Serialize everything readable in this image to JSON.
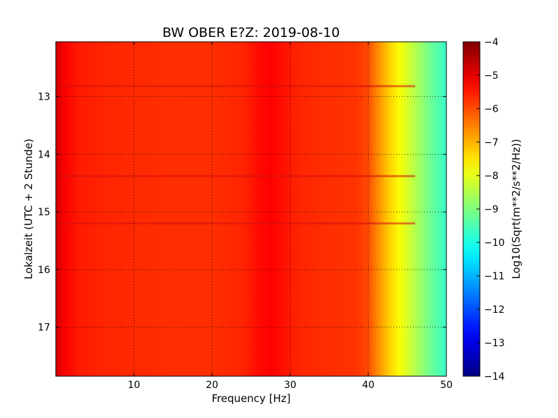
{
  "chart_data": {
    "type": "heatmap",
    "title": "BW OBER E?Z: 2019-08-10",
    "xlabel": "Frequency [Hz]",
    "ylabel": "Lokalzeit (UTC + 2 Stunde)",
    "xlim": [
      0,
      50
    ],
    "ylim": [
      17.85,
      12.05
    ],
    "x_ticks": [
      10,
      20,
      30,
      40,
      50
    ],
    "y_ticks": [
      13,
      14,
      15,
      16,
      17
    ],
    "grid": true,
    "colormap": "jet",
    "colorbar": {
      "label": "Log10(Sqrt(m**2/s**2/Hz))",
      "range": [
        -14,
        -4
      ],
      "ticks": [
        -4,
        -5,
        -6,
        -7,
        -8,
        -9,
        -10,
        -11,
        -12,
        -13,
        -14
      ]
    },
    "profile": {
      "frequency_hz": [
        0,
        1,
        3,
        6,
        10,
        15,
        20,
        24,
        26,
        27.5,
        29,
        31,
        35,
        38.5,
        40,
        41,
        42.5,
        44,
        46,
        48,
        50
      ],
      "log_psd": [
        -4.8,
        -5.2,
        -5.5,
        -5.6,
        -5.65,
        -5.7,
        -5.7,
        -5.6,
        -5.35,
        -5.25,
        -5.4,
        -5.6,
        -5.7,
        -5.75,
        -6.0,
        -6.5,
        -7.2,
        -7.8,
        -8.5,
        -9.2,
        -9.7
      ]
    },
    "bright_lines_time": [
      12.82,
      14.38,
      15.2
    ]
  }
}
